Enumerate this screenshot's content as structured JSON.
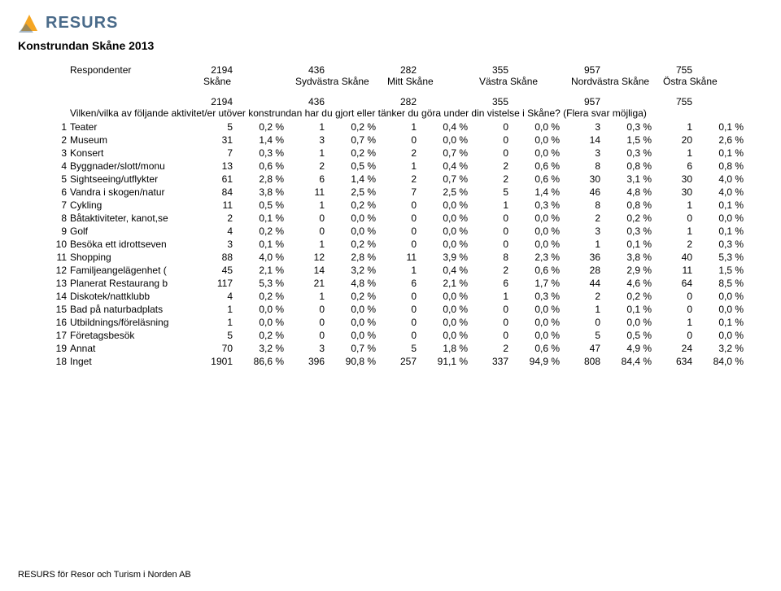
{
  "brand": {
    "name": "RESURS",
    "accent": "#f5a623",
    "text_color": "#4a6b8a"
  },
  "page_title": "Konstrundan Skåne 2013",
  "footer": "RESURS för Resor och Turism i Norden AB",
  "respondents_label": "Respondenter",
  "regions": [
    {
      "name": "Skåne",
      "count": 2194
    },
    {
      "name": "Sydvästra Skåne",
      "count": 436
    },
    {
      "name": "Mitt Skåne",
      "count": 282
    },
    {
      "name": "Västra Skåne",
      "count": 355
    },
    {
      "name": "Nordvästra Skåne",
      "count": 957
    },
    {
      "name": "Östra Skåne",
      "count": 755
    }
  ],
  "totals_row": [
    2194,
    436,
    282,
    355,
    957,
    755
  ],
  "question": "Vilken/vilka av följande aktivitet/er utöver konstrundan har du gjort eller tänker du göra under din vistelse i Skåne? (Flera svar möjliga)",
  "rows": [
    {
      "n": 1,
      "label": "Teater",
      "vals": [
        [
          5,
          "0,2 %"
        ],
        [
          1,
          "0,2 %"
        ],
        [
          1,
          "0,4 %"
        ],
        [
          0,
          "0,0 %"
        ],
        [
          3,
          "0,3 %"
        ],
        [
          1,
          "0,1 %"
        ]
      ]
    },
    {
      "n": 2,
      "label": "Museum",
      "vals": [
        [
          31,
          "1,4 %"
        ],
        [
          3,
          "0,7 %"
        ],
        [
          0,
          "0,0 %"
        ],
        [
          0,
          "0,0 %"
        ],
        [
          14,
          "1,5 %"
        ],
        [
          20,
          "2,6 %"
        ]
      ]
    },
    {
      "n": 3,
      "label": "Konsert",
      "vals": [
        [
          7,
          "0,3 %"
        ],
        [
          1,
          "0,2 %"
        ],
        [
          2,
          "0,7 %"
        ],
        [
          0,
          "0,0 %"
        ],
        [
          3,
          "0,3 %"
        ],
        [
          1,
          "0,1 %"
        ]
      ]
    },
    {
      "n": 4,
      "label": "Byggnader/slott/monu",
      "vals": [
        [
          13,
          "0,6 %"
        ],
        [
          2,
          "0,5 %"
        ],
        [
          1,
          "0,4 %"
        ],
        [
          2,
          "0,6 %"
        ],
        [
          8,
          "0,8 %"
        ],
        [
          6,
          "0,8 %"
        ]
      ]
    },
    {
      "n": 5,
      "label": "Sightseeing/utflykter",
      "vals": [
        [
          61,
          "2,8 %"
        ],
        [
          6,
          "1,4 %"
        ],
        [
          2,
          "0,7 %"
        ],
        [
          2,
          "0,6 %"
        ],
        [
          30,
          "3,1 %"
        ],
        [
          30,
          "4,0 %"
        ]
      ]
    },
    {
      "n": 6,
      "label": "Vandra i skogen/natur",
      "vals": [
        [
          84,
          "3,8 %"
        ],
        [
          11,
          "2,5 %"
        ],
        [
          7,
          "2,5 %"
        ],
        [
          5,
          "1,4 %"
        ],
        [
          46,
          "4,8 %"
        ],
        [
          30,
          "4,0 %"
        ]
      ]
    },
    {
      "n": 7,
      "label": "Cykling",
      "vals": [
        [
          11,
          "0,5 %"
        ],
        [
          1,
          "0,2 %"
        ],
        [
          0,
          "0,0 %"
        ],
        [
          1,
          "0,3 %"
        ],
        [
          8,
          "0,8 %"
        ],
        [
          1,
          "0,1 %"
        ]
      ]
    },
    {
      "n": 8,
      "label": "Båtaktiviteter, kanot,se",
      "vals": [
        [
          2,
          "0,1 %"
        ],
        [
          0,
          "0,0 %"
        ],
        [
          0,
          "0,0 %"
        ],
        [
          0,
          "0,0 %"
        ],
        [
          2,
          "0,2 %"
        ],
        [
          0,
          "0,0 %"
        ]
      ]
    },
    {
      "n": 9,
      "label": "Golf",
      "vals": [
        [
          4,
          "0,2 %"
        ],
        [
          0,
          "0,0 %"
        ],
        [
          0,
          "0,0 %"
        ],
        [
          0,
          "0,0 %"
        ],
        [
          3,
          "0,3 %"
        ],
        [
          1,
          "0,1 %"
        ]
      ]
    },
    {
      "n": 10,
      "label": "Besöka ett idrottseven",
      "vals": [
        [
          3,
          "0,1 %"
        ],
        [
          1,
          "0,2 %"
        ],
        [
          0,
          "0,0 %"
        ],
        [
          0,
          "0,0 %"
        ],
        [
          1,
          "0,1 %"
        ],
        [
          2,
          "0,3 %"
        ]
      ]
    },
    {
      "n": 11,
      "label": "Shopping",
      "vals": [
        [
          88,
          "4,0 %"
        ],
        [
          12,
          "2,8 %"
        ],
        [
          11,
          "3,9 %"
        ],
        [
          8,
          "2,3 %"
        ],
        [
          36,
          "3,8 %"
        ],
        [
          40,
          "5,3 %"
        ]
      ]
    },
    {
      "n": 12,
      "label": "Familjeangelägenhet (",
      "vals": [
        [
          45,
          "2,1 %"
        ],
        [
          14,
          "3,2 %"
        ],
        [
          1,
          "0,4 %"
        ],
        [
          2,
          "0,6 %"
        ],
        [
          28,
          "2,9 %"
        ],
        [
          11,
          "1,5 %"
        ]
      ]
    },
    {
      "n": 13,
      "label": "Planerat Restaurang b",
      "vals": [
        [
          117,
          "5,3 %"
        ],
        [
          21,
          "4,8 %"
        ],
        [
          6,
          "2,1 %"
        ],
        [
          6,
          "1,7 %"
        ],
        [
          44,
          "4,6 %"
        ],
        [
          64,
          "8,5 %"
        ]
      ]
    },
    {
      "n": 14,
      "label": "Diskotek/nattklubb",
      "vals": [
        [
          4,
          "0,2 %"
        ],
        [
          1,
          "0,2 %"
        ],
        [
          0,
          "0,0 %"
        ],
        [
          1,
          "0,3 %"
        ],
        [
          2,
          "0,2 %"
        ],
        [
          0,
          "0,0 %"
        ]
      ]
    },
    {
      "n": 15,
      "label": "Bad på naturbadplats",
      "vals": [
        [
          1,
          "0,0 %"
        ],
        [
          0,
          "0,0 %"
        ],
        [
          0,
          "0,0 %"
        ],
        [
          0,
          "0,0 %"
        ],
        [
          1,
          "0,1 %"
        ],
        [
          0,
          "0,0 %"
        ]
      ]
    },
    {
      "n": 16,
      "label": "Utbildnings/föreläsning",
      "vals": [
        [
          1,
          "0,0 %"
        ],
        [
          0,
          "0,0 %"
        ],
        [
          0,
          "0,0 %"
        ],
        [
          0,
          "0,0 %"
        ],
        [
          0,
          "0,0 %"
        ],
        [
          1,
          "0,1 %"
        ]
      ]
    },
    {
      "n": 17,
      "label": "Företagsbesök",
      "vals": [
        [
          5,
          "0,2 %"
        ],
        [
          0,
          "0,0 %"
        ],
        [
          0,
          "0,0 %"
        ],
        [
          0,
          "0,0 %"
        ],
        [
          5,
          "0,5 %"
        ],
        [
          0,
          "0,0 %"
        ]
      ]
    },
    {
      "n": 19,
      "label": "Annat",
      "vals": [
        [
          70,
          "3,2 %"
        ],
        [
          3,
          "0,7 %"
        ],
        [
          5,
          "1,8 %"
        ],
        [
          2,
          "0,6 %"
        ],
        [
          47,
          "4,9 %"
        ],
        [
          24,
          "3,2 %"
        ]
      ]
    },
    {
      "n": 18,
      "label": "Inget",
      "vals": [
        [
          1901,
          "86,6 %"
        ],
        [
          396,
          "90,8 %"
        ],
        [
          257,
          "91,1 %"
        ],
        [
          337,
          "94,9 %"
        ],
        [
          808,
          "84,4 %"
        ],
        [
          634,
          "84,0 %"
        ]
      ]
    }
  ]
}
